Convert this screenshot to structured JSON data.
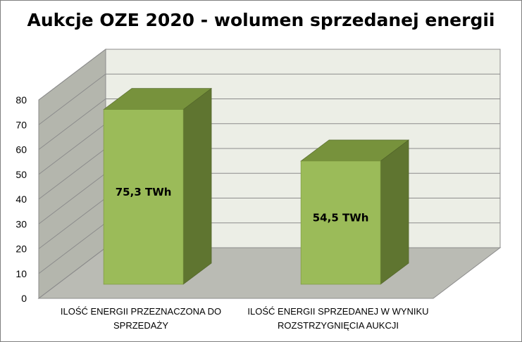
{
  "chart_data": {
    "type": "bar",
    "title": "Aukcje OZE 2020 - wolumen sprzedanej energii",
    "categories": [
      [
        "ILOŚĆ ENERGII PRZEZNACZONA DO",
        "SPRZEDAŻY"
      ],
      [
        "ILOŚĆ ENERGII SPRZEDANEJ W WYNIKU",
        "ROZSTRZYGNIĘCIA AUKCJI"
      ]
    ],
    "values": [
      75.3,
      54.5
    ],
    "data_labels": [
      "75,3 TWh",
      "54,5 TWh"
    ],
    "ylim": [
      0,
      80
    ],
    "yticks": [
      0,
      10,
      20,
      30,
      40,
      50,
      60,
      70,
      80
    ],
    "grid": true,
    "legend": "none",
    "colors": {
      "bar_front": "#9bbb59",
      "bar_top": "#77923c",
      "bar_side": "#5f7530",
      "back_wall": "#eceee6",
      "side_wall": "#b4b6ad",
      "floor": "#babbb4"
    }
  }
}
